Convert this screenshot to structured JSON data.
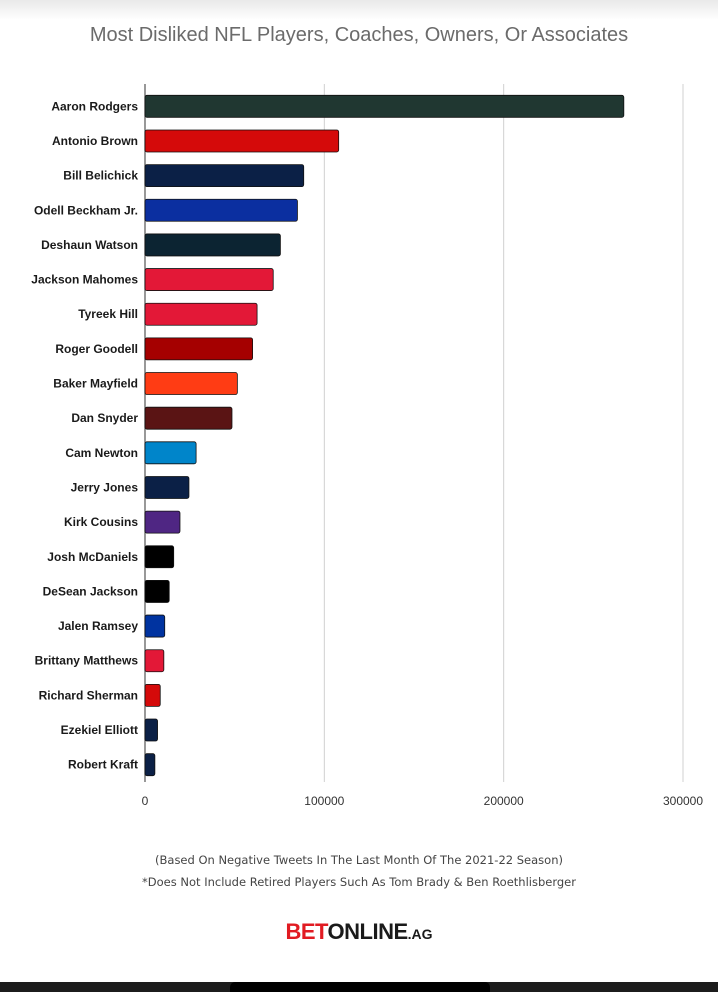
{
  "title": "Most Disliked NFL Players, Coaches, Owners, Or Associates",
  "footnotes": {
    "line1": "(Based On Negative Tweets In The Last Month Of The 2021-22 Season)",
    "line2": "*Does Not Include Retired Players Such As Tom Brady & Ben Roethlisberger"
  },
  "logo": {
    "part1": "BET",
    "part2": "ONLINE",
    "part3": ".AG"
  },
  "chart_data": {
    "type": "bar",
    "orientation": "horizontal",
    "title": "Most Disliked NFL Players, Coaches, Owners, Or Associates",
    "xlabel": "",
    "ylabel": "",
    "xlim": [
      0,
      300000
    ],
    "x_ticks": [
      0,
      100000,
      200000,
      300000
    ],
    "x_tick_labels": [
      "0",
      "100000",
      "200000",
      "300000"
    ],
    "grid": "vertical",
    "categories": [
      "Aaron Rodgers",
      "Antonio Brown",
      "Bill Belichick",
      "Odell Beckham Jr.",
      "Deshaun Watson",
      "Jackson Mahomes",
      "Tyreek Hill",
      "Roger Goodell",
      "Baker Mayfield",
      "Dan Snyder",
      "Cam Newton",
      "Jerry Jones",
      "Kirk Cousins",
      "Josh McDaniels",
      "DeSean Jackson",
      "Jalen Ramsey",
      "Brittany Matthews",
      "Richard Sherman",
      "Ezekiel Elliott",
      "Robert Kraft"
    ],
    "values": [
      267000,
      108000,
      88500,
      85000,
      75500,
      71500,
      62500,
      60000,
      51500,
      48500,
      28500,
      24500,
      19500,
      16000,
      13500,
      11000,
      10500,
      8500,
      7000,
      5500
    ],
    "colors": [
      "#203731",
      "#d50a0a",
      "#0b2046",
      "#0b2fa0",
      "#0c2432",
      "#e31837",
      "#e31837",
      "#a50000",
      "#ff3c14",
      "#5a1414",
      "#0085ca",
      "#0b2046",
      "#4f2683",
      "#000000",
      "#000000",
      "#0033a0",
      "#e31837",
      "#d50a0a",
      "#0b2046",
      "#0b2046"
    ]
  }
}
